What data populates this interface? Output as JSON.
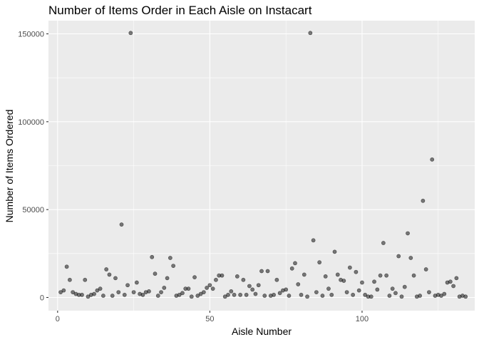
{
  "chart_data": {
    "type": "scatter",
    "title": "Number of Items Order in Each Aisle on Instacart",
    "xlabel": "Aisle Number",
    "ylabel": "Number of Items Ordered",
    "xlim": [
      -3,
      137
    ],
    "ylim": [
      -7500,
      157500
    ],
    "x_ticks": [
      0,
      50,
      100
    ],
    "y_ticks": [
      0,
      50000,
      100000,
      150000
    ],
    "x_tick_labels": [
      "0",
      "50",
      "100"
    ],
    "y_tick_labels": [
      "0",
      "50000",
      "100000",
      "150000"
    ],
    "x_minor": [
      25,
      75,
      125
    ],
    "y_minor": [
      25000,
      75000,
      125000
    ],
    "panel_color": "#ebebeb",
    "grid_color": "#ffffff",
    "point_color": "#000000",
    "point_alpha": 0.5,
    "points": [
      [
        1,
        3000
      ],
      [
        2,
        4000
      ],
      [
        3,
        17500
      ],
      [
        4,
        10000
      ],
      [
        5,
        3000
      ],
      [
        6,
        2000
      ],
      [
        7,
        1500
      ],
      [
        8,
        1500
      ],
      [
        9,
        10000
      ],
      [
        10,
        500
      ],
      [
        11,
        1500
      ],
      [
        12,
        2000
      ],
      [
        13,
        4000
      ],
      [
        14,
        5000
      ],
      [
        15,
        1000
      ],
      [
        16,
        16000
      ],
      [
        17,
        13000
      ],
      [
        18,
        1000
      ],
      [
        19,
        11000
      ],
      [
        20,
        3000
      ],
      [
        21,
        41500
      ],
      [
        22,
        1500
      ],
      [
        23,
        7000
      ],
      [
        24,
        150500
      ],
      [
        25,
        3000
      ],
      [
        26,
        8500
      ],
      [
        27,
        2000
      ],
      [
        28,
        1500
      ],
      [
        29,
        3000
      ],
      [
        30,
        3500
      ],
      [
        31,
        23000
      ],
      [
        32,
        13500
      ],
      [
        33,
        1000
      ],
      [
        34,
        3000
      ],
      [
        35,
        5500
      ],
      [
        36,
        11000
      ],
      [
        37,
        22500
      ],
      [
        38,
        18000
      ],
      [
        39,
        1000
      ],
      [
        40,
        1500
      ],
      [
        41,
        2500
      ],
      [
        42,
        5000
      ],
      [
        43,
        5000
      ],
      [
        44,
        500
      ],
      [
        45,
        11500
      ],
      [
        46,
        1000
      ],
      [
        47,
        2000
      ],
      [
        48,
        3000
      ],
      [
        49,
        5500
      ],
      [
        50,
        7000
      ],
      [
        51,
        5000
      ],
      [
        52,
        10000
      ],
      [
        53,
        12500
      ],
      [
        54,
        12500
      ],
      [
        55,
        500
      ],
      [
        56,
        1500
      ],
      [
        57,
        3500
      ],
      [
        58,
        1500
      ],
      [
        59,
        12000
      ],
      [
        60,
        1500
      ],
      [
        61,
        10000
      ],
      [
        62,
        1500
      ],
      [
        63,
        6500
      ],
      [
        64,
        4500
      ],
      [
        65,
        2000
      ],
      [
        66,
        7000
      ],
      [
        67,
        15000
      ],
      [
        68,
        1000
      ],
      [
        69,
        15000
      ],
      [
        70,
        1000
      ],
      [
        71,
        1500
      ],
      [
        72,
        10000
      ],
      [
        73,
        2500
      ],
      [
        74,
        4000
      ],
      [
        75,
        4500
      ],
      [
        76,
        1000
      ],
      [
        77,
        16500
      ],
      [
        78,
        19500
      ],
      [
        79,
        7500
      ],
      [
        80,
        1500
      ],
      [
        81,
        13000
      ],
      [
        82,
        500
      ],
      [
        83,
        150500
      ],
      [
        84,
        32500
      ],
      [
        85,
        3000
      ],
      [
        86,
        20000
      ],
      [
        87,
        1000
      ],
      [
        88,
        12000
      ],
      [
        89,
        5000
      ],
      [
        90,
        1500
      ],
      [
        91,
        26000
      ],
      [
        92,
        13000
      ],
      [
        93,
        10000
      ],
      [
        94,
        9500
      ],
      [
        95,
        3000
      ],
      [
        96,
        17000
      ],
      [
        97,
        1500
      ],
      [
        98,
        14500
      ],
      [
        99,
        4000
      ],
      [
        100,
        8500
      ],
      [
        101,
        1500
      ],
      [
        102,
        500
      ],
      [
        103,
        500
      ],
      [
        104,
        9000
      ],
      [
        105,
        4500
      ],
      [
        106,
        12500
      ],
      [
        107,
        31000
      ],
      [
        108,
        12500
      ],
      [
        109,
        1000
      ],
      [
        110,
        5000
      ],
      [
        111,
        2500
      ],
      [
        112,
        23500
      ],
      [
        113,
        500
      ],
      [
        114,
        6000
      ],
      [
        115,
        36500
      ],
      [
        116,
        22500
      ],
      [
        117,
        12500
      ],
      [
        118,
        500
      ],
      [
        119,
        1000
      ],
      [
        120,
        55000
      ],
      [
        121,
        16000
      ],
      [
        122,
        3000
      ],
      [
        123,
        78500
      ],
      [
        124,
        1000
      ],
      [
        125,
        1500
      ],
      [
        126,
        1000
      ],
      [
        127,
        2000
      ],
      [
        128,
        8500
      ],
      [
        129,
        9000
      ],
      [
        130,
        6500
      ],
      [
        131,
        11000
      ],
      [
        132,
        500
      ],
      [
        133,
        1000
      ],
      [
        134,
        500
      ]
    ]
  }
}
